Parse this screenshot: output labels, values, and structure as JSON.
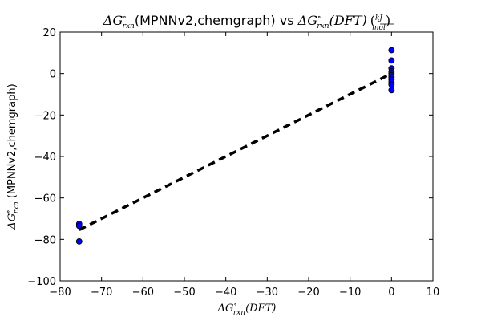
{
  "chart_data": {
    "type": "scatter",
    "title": "ΔG°rxn(MPNNv2,chemgraph) vs ΔG°rxn(DFT) (kJ/mol)",
    "title_parts": {
      "symbol": "ΔG",
      "degree": "∘",
      "subscript": "rxn",
      "model": "(MPNNv2,chemgraph)",
      "vs": " vs ",
      "ref": "(DFT)",
      "unit_num": "kJ",
      "unit_den": "mol"
    },
    "xlabel": "ΔG°rxn(DFT)",
    "ylabel": "ΔG°rxn (MPNNv2,chemgraph)",
    "xlabel_parts": {
      "symbol": "ΔG",
      "degree": "∘",
      "subscript": "rxn",
      "ref": "(DFT)"
    },
    "ylabel_parts": {
      "symbol": "ΔG",
      "degree": "∘",
      "subscript": "rxn",
      "model": " (MPNNv2,chemgraph)"
    },
    "xlim": [
      -80,
      10
    ],
    "ylim": [
      -100,
      20
    ],
    "xticks": [
      "−80",
      "−70",
      "−60",
      "−50",
      "−40",
      "−30",
      "−20",
      "−10",
      "0",
      "10"
    ],
    "xtick_values": [
      -80,
      -70,
      -60,
      -50,
      -40,
      -30,
      -20,
      -10,
      0,
      10
    ],
    "yticks": [
      "−100",
      "−80",
      "−60",
      "−40",
      "−20",
      "0",
      "20"
    ],
    "ytick_values": [
      -100,
      -80,
      -60,
      -40,
      -20,
      0,
      20
    ],
    "grid": false,
    "series": [
      {
        "points": [
          [
            -75.4,
            -72.5
          ],
          [
            -75.4,
            -73.5
          ],
          [
            -75.4,
            -81.0
          ],
          [
            0,
            11.3
          ],
          [
            0,
            6.3
          ],
          [
            0,
            2.5
          ],
          [
            0,
            1.0
          ],
          [
            0,
            0.2
          ],
          [
            0,
            -0.8
          ],
          [
            0,
            -1.8
          ],
          [
            0,
            -3.0
          ],
          [
            0,
            -4.2
          ],
          [
            0,
            -5.3
          ],
          [
            0,
            -8.0
          ]
        ],
        "color": "#0000ff",
        "marker": "circle"
      }
    ],
    "parity_line": {
      "x": [
        -75.4,
        0
      ],
      "y": [
        -75.4,
        0
      ],
      "color": "#000000",
      "style": "dashed"
    }
  }
}
